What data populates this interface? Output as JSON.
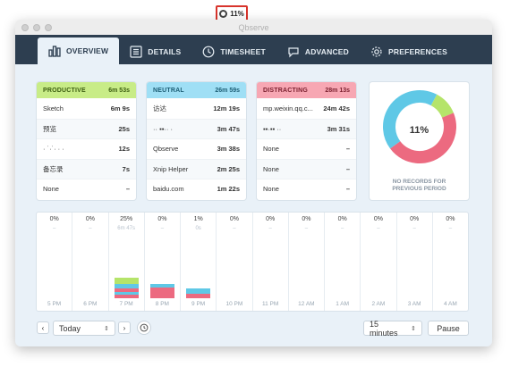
{
  "menubar": {
    "status_label": "11%"
  },
  "window": {
    "title": "Qbserve"
  },
  "tabs": [
    {
      "label": "OVERVIEW",
      "icon": "bar-chart-icon",
      "active": true
    },
    {
      "label": "DETAILS",
      "icon": "list-icon"
    },
    {
      "label": "TIMESHEET",
      "icon": "clock-icon"
    },
    {
      "label": "ADVANCED",
      "icon": "chat-icon"
    },
    {
      "label": "PREFERENCES",
      "icon": "gear-icon"
    }
  ],
  "productive": {
    "name": "PRODUCTIVE",
    "total": "6m 53s",
    "rows": [
      {
        "app": "Sketch",
        "time": "6m 9s"
      },
      {
        "app": "预览",
        "time": "25s"
      },
      {
        "app": "· ˙·˙· · ·",
        "time": "12s"
      },
      {
        "app": "备忘录",
        "time": "7s"
      },
      {
        "app": "None",
        "time": "–"
      }
    ]
  },
  "neutral": {
    "name": "NEUTRAL",
    "total": "26m 59s",
    "rows": [
      {
        "app": "访达",
        "time": "12m 19s"
      },
      {
        "app": "·· ▪▪·· ·",
        "time": "3m 47s"
      },
      {
        "app": "Qbserve",
        "time": "3m 38s"
      },
      {
        "app": "Xnip Helper",
        "time": "2m 25s"
      },
      {
        "app": "baidu.com",
        "time": "1m 22s"
      }
    ]
  },
  "distracting": {
    "name": "DISTRACTING",
    "total": "28m 13s",
    "rows": [
      {
        "app": "mp.weixin.qq.c...",
        "time": "24m 42s"
      },
      {
        "app": "▪▪·▪▪ ··",
        "time": "3m 31s"
      },
      {
        "app": "None",
        "time": "–"
      },
      {
        "app": "None",
        "time": "–"
      },
      {
        "app": "None",
        "time": "–"
      }
    ]
  },
  "donut": {
    "center_label": "11%",
    "note_line1": "NO RECORDS FOR",
    "note_line2": "PREVIOUS PERIOD",
    "segments": [
      {
        "name": "productive",
        "fraction": 0.11,
        "color": "#b5e46a"
      },
      {
        "name": "distracting",
        "fraction": 0.46,
        "color": "#ec6a80"
      },
      {
        "name": "neutral",
        "fraction": 0.43,
        "color": "#5fc8e6"
      }
    ]
  },
  "timeline": {
    "hours": [
      {
        "label": "5 PM",
        "pct": "0%",
        "dur": "–",
        "segments": []
      },
      {
        "label": "6 PM",
        "pct": "0%",
        "dur": "–",
        "segments": []
      },
      {
        "label": "7 PM",
        "pct": "25%",
        "dur": "6m 47s",
        "segments": [
          {
            "color": "#b5e46a",
            "fraction": 0.09
          },
          {
            "color": "#5fc8e6",
            "fraction": 0.06
          },
          {
            "color": "#ec6a80",
            "fraction": 0.05
          },
          {
            "color": "#5fc8e6",
            "fraction": 0.04
          },
          {
            "color": "#ec6a80",
            "fraction": 0.05
          }
        ]
      },
      {
        "label": "8 PM",
        "pct": "0%",
        "dur": "–",
        "segments": [
          {
            "color": "#5fc8e6",
            "fraction": 0.05
          },
          {
            "color": "#ec6a80",
            "fraction": 0.15
          }
        ]
      },
      {
        "label": "9 PM",
        "pct": "1%",
        "dur": "0s",
        "segments": [
          {
            "color": "#5fc8e6",
            "fraction": 0.08
          },
          {
            "color": "#ec6a80",
            "fraction": 0.06
          }
        ]
      },
      {
        "label": "10 PM",
        "pct": "0%",
        "dur": "–",
        "segments": []
      },
      {
        "label": "11 PM",
        "pct": "0%",
        "dur": "–",
        "segments": []
      },
      {
        "label": "12 AM",
        "pct": "0%",
        "dur": "–",
        "segments": []
      },
      {
        "label": "1 AM",
        "pct": "0%",
        "dur": "–",
        "segments": []
      },
      {
        "label": "2 AM",
        "pct": "0%",
        "dur": "–",
        "segments": []
      },
      {
        "label": "3 AM",
        "pct": "0%",
        "dur": "–",
        "segments": []
      },
      {
        "label": "4 AM",
        "pct": "0%",
        "dur": "–",
        "segments": []
      }
    ]
  },
  "toolbar": {
    "prev": "‹",
    "next": "›",
    "period": "Today",
    "interval": "15 minutes",
    "pause": "Pause"
  }
}
